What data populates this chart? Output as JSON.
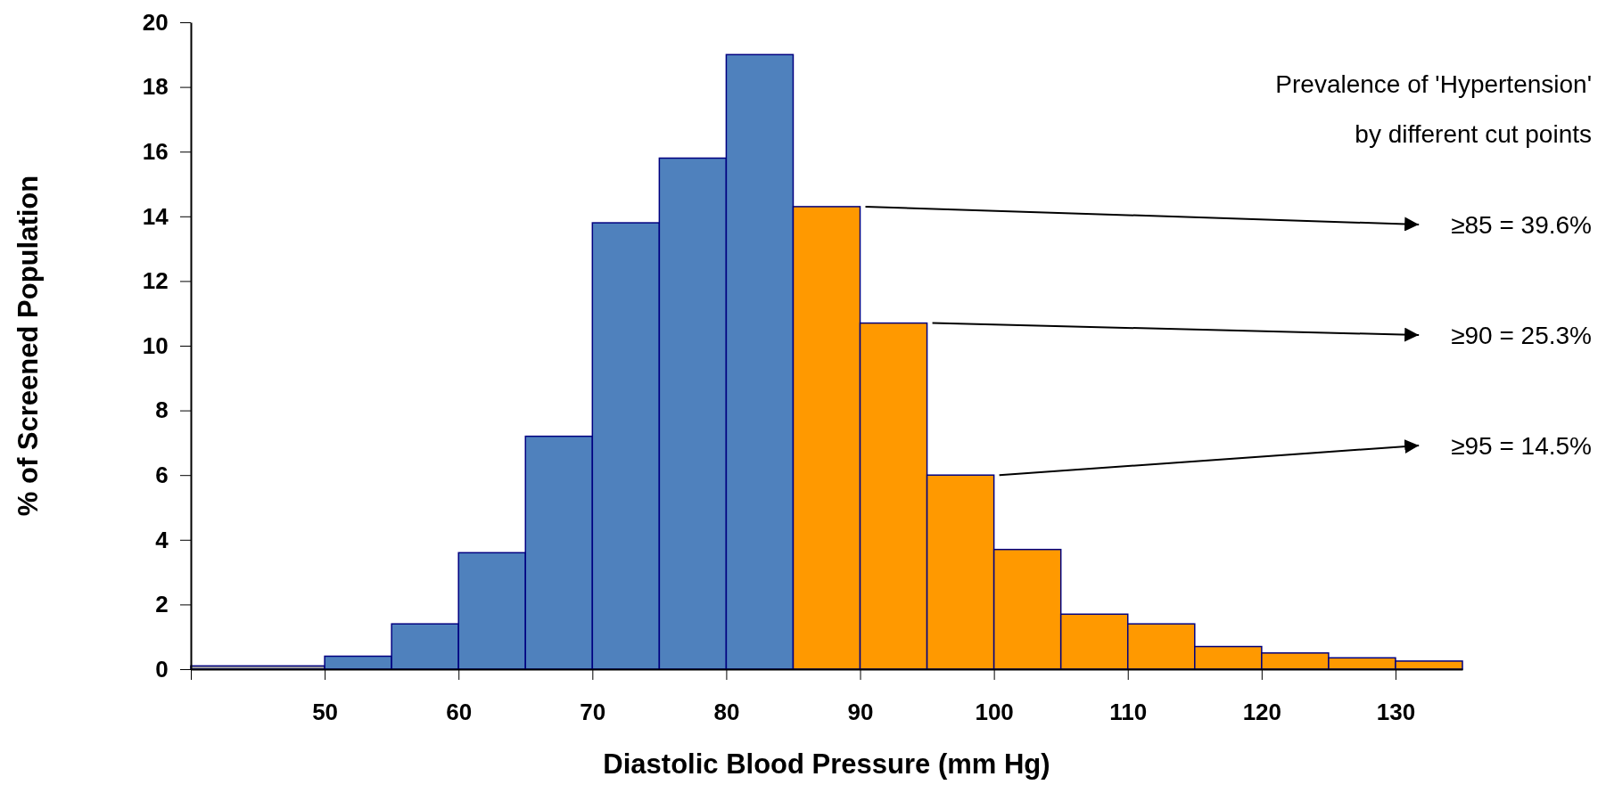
{
  "chart_data": {
    "type": "histogram",
    "xlabel": "Diastolic Blood Pressure (mm Hg)",
    "ylabel": "% of Screened Population",
    "bins": [
      40,
      50,
      55,
      60,
      65,
      70,
      75,
      80,
      85,
      90,
      95,
      100,
      105,
      110,
      115,
      120,
      125,
      130,
      135
    ],
    "values": [
      0.1,
      0.4,
      1.4,
      3.6,
      7.2,
      13.8,
      15.8,
      19.0,
      14.3,
      10.7,
      6.0,
      3.7,
      1.7,
      1.4,
      0.7,
      0.5,
      0.35,
      0.25
    ],
    "colors": [
      "#a0a0a0",
      "#4f81bd",
      "#4f81bd",
      "#4f81bd",
      "#4f81bd",
      "#4f81bd",
      "#4f81bd",
      "#4f81bd",
      "#ff9900",
      "#ff9900",
      "#ff9900",
      "#ff9900",
      "#ff9900",
      "#ff9900",
      "#ff9900",
      "#ff9900",
      "#ff9900",
      "#ff9900"
    ],
    "xlim": [
      40,
      135
    ],
    "ylim": [
      0,
      20
    ],
    "xticks": [
      {
        "value": 40,
        "label": null
      },
      50,
      60,
      70,
      80,
      90,
      100,
      110,
      120,
      130
    ],
    "yticks": [
      0,
      2,
      4,
      6,
      8,
      10,
      12,
      14,
      16,
      18,
      20
    ],
    "annotations": [
      "Prevalence of 'Hypertension'",
      "by different cut points",
      {
        "text": "≥85 = 39.6%",
        "x": 90,
        "y": 14.3
      },
      {
        "text": "≥90 = 25.3%",
        "x": 95,
        "y": 10.7
      },
      {
        "text": "≥95 = 14.5%",
        "x": 100,
        "y": 6.0
      }
    ]
  }
}
